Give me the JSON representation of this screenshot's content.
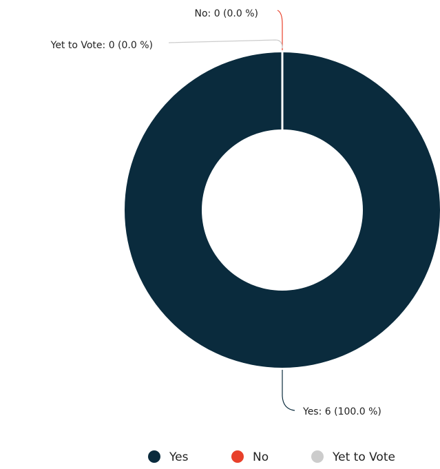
{
  "chart_data": {
    "type": "donut",
    "categories": [
      "Yes",
      "No",
      "Yet to Vote"
    ],
    "values": [
      6,
      0,
      0
    ],
    "value_labels": [
      "Yes: 6 (100.0 %)",
      "No: 0 (0.0 %)",
      "Yet to Vote: 0 (0.0 %)"
    ],
    "colors": [
      "#0a2b3d",
      "#e8402a",
      "#cccccc"
    ],
    "legend": "bottom"
  }
}
